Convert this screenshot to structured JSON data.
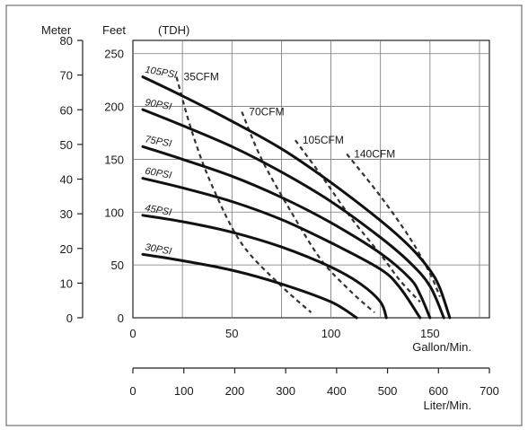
{
  "chart_data": {
    "type": "line",
    "title": "",
    "header_labels": {
      "meter": "Meter",
      "feet": "Feet",
      "tdh": "(TDH)"
    },
    "axes": {
      "meter": {
        "ticks": [
          "0",
          "10",
          "20",
          "30",
          "40",
          "50",
          "60",
          "70",
          "80"
        ],
        "range": [
          0,
          80
        ]
      },
      "feet": {
        "ticks": [
          "0",
          "50",
          "100",
          "150",
          "200",
          "250"
        ],
        "range": [
          0,
          262.5
        ]
      },
      "gpm": {
        "ticks": [
          "0",
          "50",
          "100",
          "150"
        ],
        "range": [
          0,
          180
        ],
        "label": "Gallon/Min."
      },
      "lpm": {
        "ticks": [
          "0",
          "100",
          "200",
          "300",
          "400",
          "500",
          "600",
          "700"
        ],
        "range": [
          0,
          700
        ],
        "label": "Liter/Min."
      }
    },
    "grid": true,
    "series": [
      {
        "name": "105PSI",
        "kind": "pressure",
        "points": [
          [
            5,
            228
          ],
          [
            25,
            210
          ],
          [
            50,
            186
          ],
          [
            75,
            160
          ],
          [
            100,
            128
          ],
          [
            125,
            92
          ],
          [
            140,
            67
          ],
          [
            150,
            45
          ],
          [
            155,
            28
          ],
          [
            160,
            0
          ]
        ]
      },
      {
        "name": "90PSI",
        "kind": "pressure",
        "points": [
          [
            5,
            197
          ],
          [
            25,
            182
          ],
          [
            50,
            162
          ],
          [
            75,
            138
          ],
          [
            100,
            110
          ],
          [
            125,
            76
          ],
          [
            140,
            52
          ],
          [
            150,
            30
          ],
          [
            157,
            0
          ]
        ]
      },
      {
        "name": "75PSI",
        "kind": "pressure",
        "points": [
          [
            5,
            162
          ],
          [
            25,
            150
          ],
          [
            50,
            134
          ],
          [
            75,
            114
          ],
          [
            100,
            90
          ],
          [
            125,
            61
          ],
          [
            140,
            37
          ],
          [
            145,
            22
          ],
          [
            150,
            0
          ]
        ]
      },
      {
        "name": "60PSI",
        "kind": "pressure",
        "points": [
          [
            5,
            132
          ],
          [
            25,
            123
          ],
          [
            50,
            110
          ],
          [
            75,
            93
          ],
          [
            100,
            71
          ],
          [
            125,
            46
          ],
          [
            135,
            28
          ],
          [
            145,
            0
          ]
        ]
      },
      {
        "name": "45PSI",
        "kind": "pressure",
        "points": [
          [
            5,
            97
          ],
          [
            25,
            91
          ],
          [
            50,
            81
          ],
          [
            75,
            67
          ],
          [
            100,
            48
          ],
          [
            115,
            32
          ],
          [
            125,
            15
          ],
          [
            128,
            0
          ]
        ]
      },
      {
        "name": "30PSI",
        "kind": "pressure",
        "points": [
          [
            5,
            60
          ],
          [
            25,
            54
          ],
          [
            50,
            45
          ],
          [
            75,
            32
          ],
          [
            100,
            15
          ],
          [
            113,
            0
          ]
        ]
      },
      {
        "name": "35CFM",
        "kind": "air",
        "points": [
          [
            22,
            228
          ],
          [
            30,
            175
          ],
          [
            40,
            125
          ],
          [
            55,
            70
          ],
          [
            75,
            30
          ],
          [
            90,
            5
          ]
        ]
      },
      {
        "name": "70CFM",
        "kind": "air",
        "points": [
          [
            55,
            195
          ],
          [
            65,
            150
          ],
          [
            80,
            100
          ],
          [
            95,
            55
          ],
          [
            110,
            25
          ],
          [
            122,
            5
          ]
        ]
      },
      {
        "name": "105CFM",
        "kind": "air",
        "points": [
          [
            82,
            168
          ],
          [
            95,
            135
          ],
          [
            110,
            95
          ],
          [
            125,
            60
          ],
          [
            135,
            35
          ],
          [
            145,
            15
          ]
        ]
      },
      {
        "name": "140CFM",
        "kind": "air",
        "points": [
          [
            108,
            155
          ],
          [
            125,
            115
          ],
          [
            140,
            75
          ],
          [
            150,
            42
          ],
          [
            155,
            20
          ]
        ]
      }
    ]
  }
}
